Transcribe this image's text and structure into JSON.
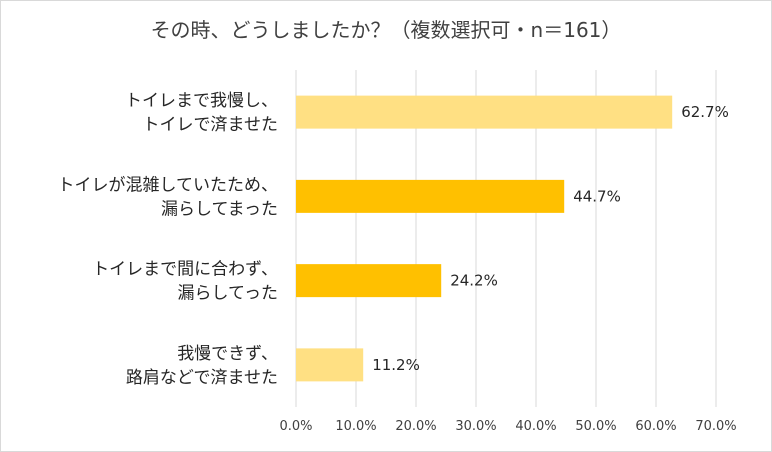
{
  "chart_data": {
    "type": "bar",
    "orientation": "horizontal",
    "title": "その時、どうしましたか？（複数選択可・n＝161）",
    "categories": [
      [
        "トイレまで我慢し、",
        "トイレで済ませた"
      ],
      [
        "トイレが混雑していたため、",
        "漏らしてまった"
      ],
      [
        "トイレまで間に合わず、",
        "漏らしてった"
      ],
      [
        "我慢できず、",
        "路肩などで済ませた"
      ]
    ],
    "values": [
      62.7,
      44.7,
      24.2,
      11.2
    ],
    "value_labels": [
      "62.7%",
      "44.7%",
      "24.2%",
      "11.2%"
    ],
    "bar_colors": [
      "#ffe083",
      "#ffc000",
      "#ffc000",
      "#ffe083"
    ],
    "xlim": [
      0,
      70
    ],
    "x_ticks": [
      "0.0%",
      "10.0%",
      "20.0%",
      "30.0%",
      "40.0%",
      "50.0%",
      "60.0%",
      "70.0%"
    ],
    "grid": true,
    "legend": false
  }
}
